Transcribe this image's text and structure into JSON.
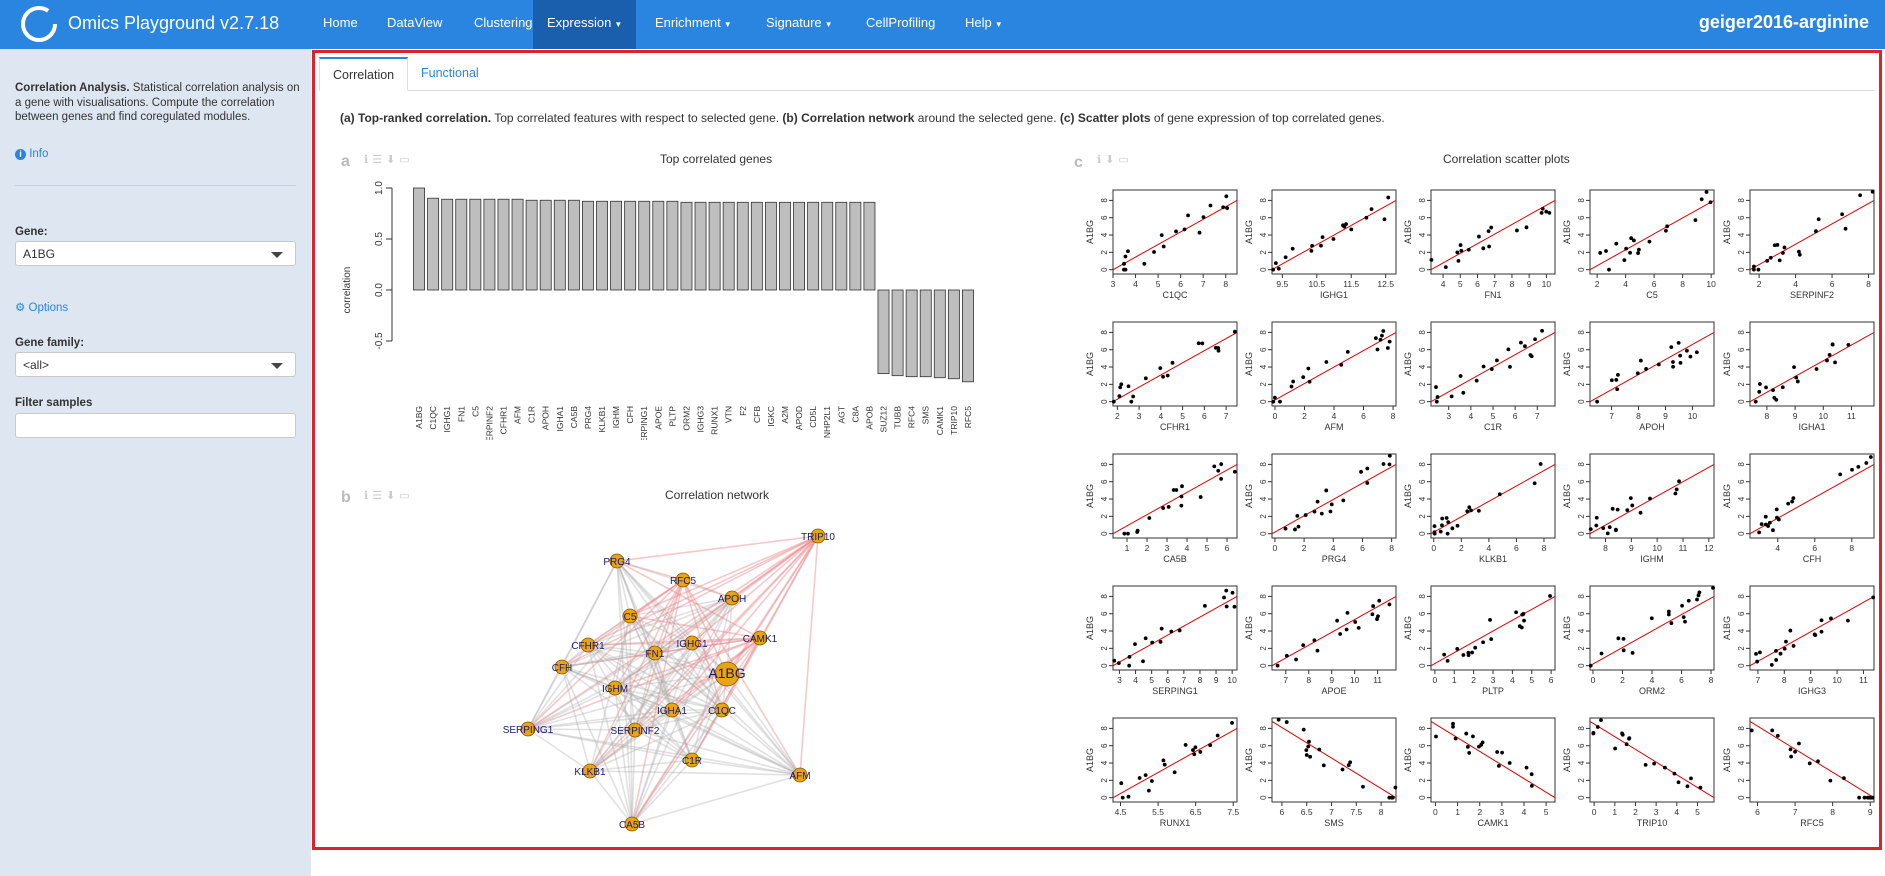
{
  "app": {
    "title": "Omics Playground v2.7.18",
    "project": "geiger2016-arginine"
  },
  "nav": [
    {
      "label": "Home",
      "dropdown": false,
      "active": false
    },
    {
      "label": "DataView",
      "dropdown": false,
      "active": false
    },
    {
      "label": "Clustering",
      "dropdown": false,
      "active": false
    },
    {
      "label": "Expression",
      "dropdown": true,
      "active": true
    },
    {
      "label": "Enrichment",
      "dropdown": true,
      "active": false
    },
    {
      "label": "Signature",
      "dropdown": true,
      "active": false
    },
    {
      "label": "CellProfiling",
      "dropdown": false,
      "active": false
    },
    {
      "label": "Help",
      "dropdown": true,
      "active": false
    }
  ],
  "sidebar": {
    "intro_bold": "Correlation Analysis.",
    "intro_text": " Statistical correlation analysis on a gene with visualisations. Compute the correlation between genes and find coregulated modules.",
    "info_link": "Info",
    "gene_label": "Gene:",
    "gene_value": "A1BG",
    "options_link": "Options",
    "family_label": "Gene family:",
    "family_value": "<all>",
    "filter_label": "Filter samples",
    "filter_value": ""
  },
  "tabs": [
    {
      "label": "Correlation",
      "active": true
    },
    {
      "label": "Functional",
      "active": false
    }
  ],
  "description": {
    "a_bold": "(a) Top-ranked correlation.",
    "a_text": " Top correlated features with respect to selected gene. ",
    "b_bold": "(b) Correlation network",
    "b_text": " around the selected gene. ",
    "c_bold": "(c) Scatter plots",
    "c_text": " of gene expression of top correlated genes."
  },
  "panels": {
    "a_letter": "a",
    "b_letter": "b",
    "c_letter": "c",
    "a_title": "Top correlated genes",
    "b_title": "Correlation network",
    "c_title": "Correlation scatter plots"
  },
  "chart_data": [
    {
      "type": "bar",
      "title": "Top correlated genes",
      "ylabel": "correlation",
      "ylim": [
        -1.0,
        1.0
      ],
      "yticks": [
        -0.5,
        0.0,
        0.5,
        1.0
      ],
      "bar_color": "#bebebe",
      "categories": [
        "A1BG",
        "C1QC",
        "IGHG1",
        "FN1",
        "C5",
        "SERPINF2",
        "CFHR1",
        "AFM",
        "C1R",
        "APOH",
        "IGHA1",
        "CA5B",
        "PRG4",
        "KLKB1",
        "IGHM",
        "CFH",
        "SERPING1",
        "APOE",
        "PLTP",
        "ORM2",
        "IGHG3",
        "RUNX1",
        "VTN",
        "F2",
        "CFB",
        "IGKC",
        "A2M",
        "APOD",
        "CD5L",
        "NHP2L1",
        "AGT",
        "C8A",
        "APOB",
        "SUZ12",
        "TUBB",
        "RFC4",
        "SMS",
        "CAMK1",
        "TRIP10",
        "RFC5"
      ],
      "values": [
        1.0,
        0.9,
        0.89,
        0.89,
        0.89,
        0.89,
        0.89,
        0.89,
        0.88,
        0.88,
        0.88,
        0.88,
        0.87,
        0.87,
        0.87,
        0.87,
        0.87,
        0.87,
        0.87,
        0.86,
        0.86,
        0.86,
        0.86,
        0.86,
        0.86,
        0.86,
        0.86,
        0.86,
        0.86,
        0.86,
        0.86,
        0.86,
        0.86,
        -0.82,
        -0.84,
        -0.85,
        -0.85,
        -0.86,
        -0.87,
        -0.9
      ]
    },
    {
      "type": "network",
      "title": "Correlation network",
      "center": "A1BG",
      "nodes": [
        "A1BG",
        "PRG4",
        "RFC5",
        "APOH",
        "TRIP10",
        "C5",
        "CFHR1",
        "IGHG1",
        "CAMK1",
        "FN1",
        "CFH",
        "IGHM",
        "IGHA1",
        "C1QC",
        "SERPING1",
        "SERPINF2",
        "KLKB1",
        "C1R",
        "AFM",
        "CA5B"
      ],
      "node_color": "#e8a317",
      "positive_edge_color": "#aaaaaa",
      "negative_edge_color": "#e8888c"
    },
    {
      "type": "scatter",
      "title": "Correlation scatter plots",
      "ylabel": "A1BG",
      "yticks": [
        0,
        2,
        4,
        6,
        8
      ],
      "fit_line_color": "#e00000",
      "panels": [
        {
          "xlabel": "C1QC",
          "xticks": [
            3,
            4,
            5,
            6,
            7,
            8
          ],
          "xlim": [
            3,
            8.5
          ],
          "trend": "up"
        },
        {
          "xlabel": "IGHG1",
          "xticks": [
            9.5,
            10.5,
            11.5,
            12.5
          ],
          "xlim": [
            9.2,
            12.8
          ],
          "trend": "up"
        },
        {
          "xlabel": "FN1",
          "xticks": [
            4,
            5,
            6,
            7,
            8,
            9,
            10
          ],
          "xlim": [
            3.3,
            10.5
          ],
          "trend": "up"
        },
        {
          "xlabel": "C5",
          "xticks": [
            2,
            4,
            6,
            8,
            10
          ],
          "xlim": [
            1.5,
            10.2
          ],
          "trend": "up"
        },
        {
          "xlabel": "SERPINF2",
          "xticks": [
            2,
            4,
            6,
            8
          ],
          "xlim": [
            1.5,
            8.3
          ],
          "trend": "up"
        },
        {
          "xlabel": "CFHR1",
          "xticks": [
            2,
            3,
            4,
            5,
            6,
            7
          ],
          "xlim": [
            1.8,
            7.5
          ],
          "trend": "up"
        },
        {
          "xlabel": "AFM",
          "xticks": [
            0,
            2,
            4,
            6,
            8
          ],
          "xlim": [
            -0.2,
            8.2
          ],
          "trend": "up"
        },
        {
          "xlabel": "C1R",
          "xticks": [
            3,
            4,
            5,
            6,
            7
          ],
          "xlim": [
            2.2,
            7.8
          ],
          "trend": "up"
        },
        {
          "xlabel": "APOH",
          "xticks": [
            7,
            8,
            9,
            10
          ],
          "xlim": [
            6.2,
            10.8
          ],
          "trend": "up"
        },
        {
          "xlabel": "IGHA1",
          "xticks": [
            8,
            9,
            10,
            11
          ],
          "xlim": [
            7.4,
            11.8
          ],
          "trend": "up"
        },
        {
          "xlabel": "CA5B",
          "xticks": [
            1,
            2,
            3,
            4,
            5,
            6
          ],
          "xlim": [
            0.3,
            6.5
          ],
          "trend": "up"
        },
        {
          "xlabel": "PRG4",
          "xticks": [
            0,
            2,
            4,
            6,
            8
          ],
          "xlim": [
            -0.2,
            8.3
          ],
          "trend": "up"
        },
        {
          "xlabel": "KLKB1",
          "xticks": [
            0,
            2,
            4,
            6,
            8
          ],
          "xlim": [
            -0.2,
            8.8
          ],
          "trend": "up"
        },
        {
          "xlabel": "IGHM",
          "xticks": [
            8,
            9,
            10,
            11,
            12
          ],
          "xlim": [
            7.4,
            12.2
          ],
          "trend": "up"
        },
        {
          "xlabel": "CFH",
          "xticks": [
            4,
            6,
            8
          ],
          "xlim": [
            2.5,
            9.2
          ],
          "trend": "up"
        },
        {
          "xlabel": "SERPING1",
          "xticks": [
            3,
            4,
            5,
            6,
            7,
            8,
            9,
            10
          ],
          "xlim": [
            2.6,
            10.3
          ],
          "trend": "up"
        },
        {
          "xlabel": "APOE",
          "xticks": [
            7,
            8,
            9,
            10,
            11
          ],
          "xlim": [
            6.4,
            11.8
          ],
          "trend": "up"
        },
        {
          "xlabel": "PLTP",
          "xticks": [
            0,
            1,
            2,
            3,
            4,
            5,
            6
          ],
          "xlim": [
            -0.2,
            6.2
          ],
          "trend": "up"
        },
        {
          "xlabel": "ORM2",
          "xticks": [
            0,
            2,
            4,
            6,
            8
          ],
          "xlim": [
            -0.2,
            8.2
          ],
          "trend": "up"
        },
        {
          "xlabel": "IGHG3",
          "xticks": [
            7,
            8,
            9,
            10,
            11
          ],
          "xlim": [
            6.7,
            11.4
          ],
          "trend": "up"
        },
        {
          "xlabel": "RUNX1",
          "xticks": [
            4.5,
            5.5,
            6.5,
            7.5
          ],
          "xlim": [
            4.3,
            7.6
          ],
          "trend": "up"
        },
        {
          "xlabel": "SMS",
          "xticks": [
            6.0,
            6.5,
            7.0,
            7.5,
            8.0
          ],
          "xlim": [
            5.8,
            8.3
          ],
          "trend": "down"
        },
        {
          "xlabel": "CAMK1",
          "xticks": [
            0,
            1,
            2,
            3,
            4,
            5
          ],
          "xlim": [
            -0.2,
            5.4
          ],
          "trend": "down"
        },
        {
          "xlabel": "TRIP10",
          "xticks": [
            0,
            1,
            2,
            3,
            4,
            5
          ],
          "xlim": [
            -0.2,
            5.8
          ],
          "trend": "down"
        },
        {
          "xlabel": "RFC5",
          "xticks": [
            6.0,
            7.0,
            8.0,
            9.0
          ],
          "xlim": [
            5.8,
            9.1
          ],
          "trend": "down"
        }
      ]
    }
  ]
}
